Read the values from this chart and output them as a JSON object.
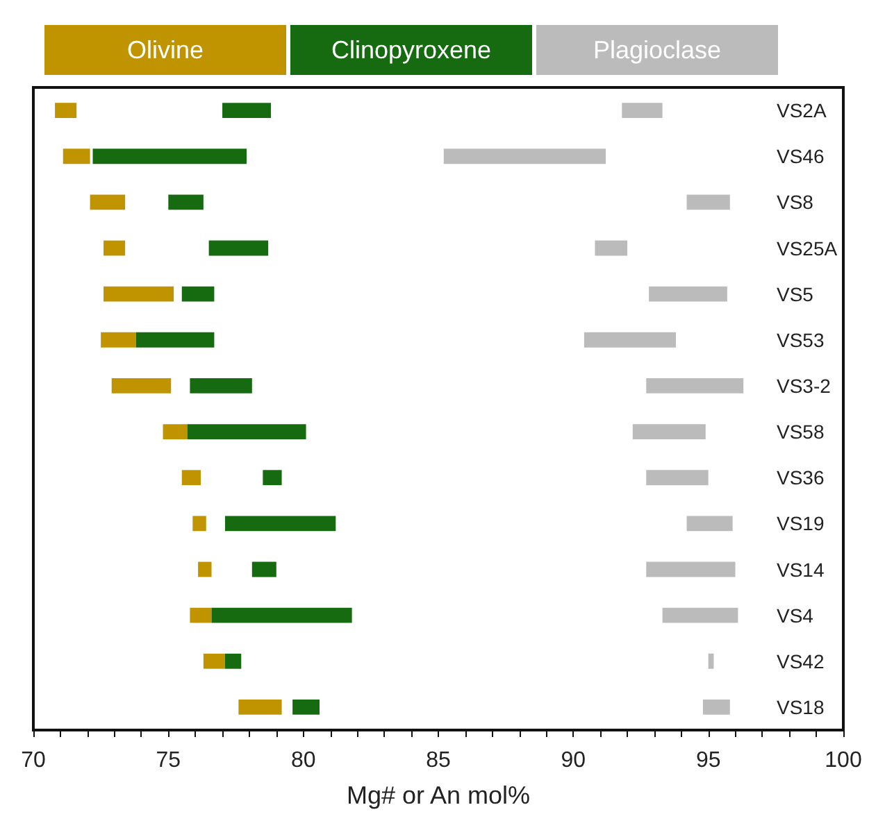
{
  "chart_data": {
    "type": "bar",
    "orientation": "horizontal",
    "xlabel": "Mg# or An mol%",
    "categories": [
      "VS2A",
      "VS46",
      "VS8",
      "VS25A",
      "VS5",
      "VS53",
      "VS3-2",
      "VS58",
      "VS36",
      "VS19",
      "VS14",
      "VS4",
      "VS42",
      "VS18"
    ],
    "series": [
      {
        "name": "Olivine",
        "color": "#c09400",
        "base": [
          70.8,
          71.1,
          72.1,
          72.6,
          72.6,
          72.5,
          72.9,
          74.8,
          75.5,
          75.9,
          76.1,
          75.8,
          76.3,
          77.6
        ],
        "values": [
          0.8,
          1.0,
          1.3,
          0.8,
          2.6,
          1.3,
          2.2,
          0.9,
          0.7,
          0.5,
          0.5,
          0.8,
          0.8,
          1.6
        ]
      },
      {
        "name": "Clinopyroxene",
        "color": "#166b10",
        "base": [
          77.0,
          72.2,
          75.0,
          76.5,
          75.5,
          73.8,
          75.8,
          75.7,
          78.5,
          77.1,
          78.1,
          76.6,
          77.1,
          79.6
        ],
        "values": [
          1.8,
          5.7,
          1.3,
          2.2,
          1.2,
          2.9,
          2.3,
          4.4,
          0.7,
          4.1,
          0.9,
          5.2,
          0.6,
          1.0
        ]
      },
      {
        "name": "Plagioclase",
        "color": "#bbbbbb",
        "base": [
          91.8,
          85.2,
          94.2,
          90.8,
          92.8,
          90.4,
          92.7,
          92.2,
          92.7,
          94.2,
          92.7,
          93.3,
          95.0,
          94.8
        ],
        "values": [
          1.5,
          6.0,
          1.6,
          1.2,
          2.9,
          3.4,
          3.6,
          2.7,
          2.3,
          1.7,
          3.3,
          2.8,
          0.2,
          1.0
        ]
      }
    ],
    "xlim": [
      70,
      100
    ],
    "xticks": [
      70,
      75,
      80,
      85,
      90,
      95,
      100
    ],
    "grid": false,
    "legend": "top"
  }
}
